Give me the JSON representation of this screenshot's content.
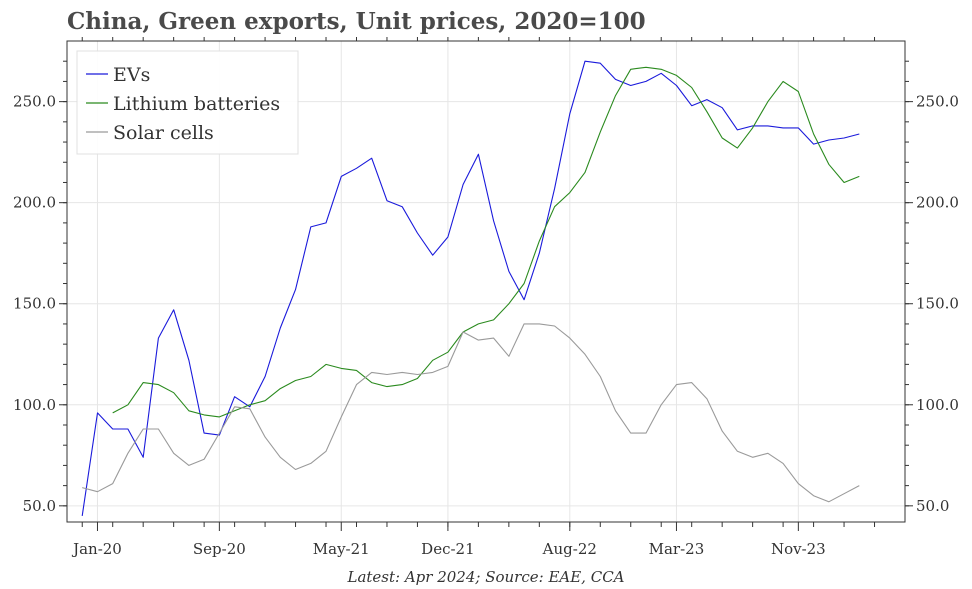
{
  "title": "China, Green exports, Unit prices, 2020=100",
  "source": "Latest: Apr 2024; Source: EAE, CCA",
  "colors": {
    "EVs": "#1a1adb",
    "Lithium batteries": "#2a8a1e",
    "Solar cells": "#9a9a9a",
    "grid": "#e6e6e6",
    "axis": "#333333"
  },
  "chart_data": {
    "type": "line",
    "title": "China, Green exports, Unit prices, 2020=100",
    "xlabel": "",
    "ylabel": "",
    "ylim": [
      42,
      280
    ],
    "grid": true,
    "legend": "top-left",
    "x_start": "Nov-19",
    "x": [
      "Dec-19",
      "Jan-20",
      "Feb-20",
      "Mar-20",
      "Apr-20",
      "May-20",
      "Jun-20",
      "Jul-20",
      "Aug-20",
      "Sep-20",
      "Oct-20",
      "Nov-20",
      "Dec-20",
      "Jan-21",
      "Feb-21",
      "Mar-21",
      "Apr-21",
      "May-21",
      "Jun-21",
      "Jul-21",
      "Aug-21",
      "Sep-21",
      "Oct-21",
      "Nov-21",
      "Dec-21",
      "Jan-22",
      "Feb-22",
      "Mar-22",
      "Apr-22",
      "May-22",
      "Jun-22",
      "Jul-22",
      "Aug-22",
      "Sep-22",
      "Oct-22",
      "Nov-22",
      "Dec-22",
      "Jan-23",
      "Feb-23",
      "Mar-23",
      "Apr-23",
      "May-23",
      "Jun-23",
      "Jul-23",
      "Aug-23",
      "Sep-23",
      "Oct-23",
      "Nov-23",
      "Dec-23",
      "Jan-24",
      "Feb-24",
      "Mar-24",
      "Apr-24"
    ],
    "x_tick_labels": [
      "Jan-20",
      "Sep-20",
      "May-21",
      "Dec-21",
      "Aug-22",
      "Mar-23",
      "Nov-23"
    ],
    "y_ticks": [
      "50.0",
      "100.0",
      "150.0",
      "200.0",
      "250.0"
    ],
    "series": [
      {
        "name": "EVs",
        "values": [
          45,
          96,
          88,
          88,
          74,
          133,
          147,
          122,
          86,
          85,
          104,
          99,
          114,
          138,
          157,
          188,
          190,
          213,
          217,
          222,
          201,
          198,
          185,
          174,
          183,
          209,
          224,
          191,
          166,
          152,
          175,
          207,
          244,
          270,
          269,
          261,
          258,
          260,
          264,
          258,
          248,
          251,
          247,
          236,
          238,
          238,
          237,
          237,
          229,
          231,
          232,
          234,
          null
        ]
      },
      {
        "name": "Lithium batteries",
        "values": [
          null,
          null,
          96,
          100,
          111,
          110,
          106,
          97,
          95,
          94,
          97,
          100,
          102,
          108,
          112,
          114,
          120,
          118,
          117,
          111,
          109,
          110,
          113,
          122,
          126,
          136,
          140,
          142,
          150,
          160,
          181,
          198,
          205,
          215,
          235,
          253,
          266,
          267,
          266,
          263,
          257,
          245,
          232,
          227,
          237,
          250,
          260,
          255,
          234,
          219,
          210,
          213,
          null
        ]
      },
      {
        "name": "Solar cells",
        "values": [
          59,
          57,
          61,
          76,
          88,
          88,
          76,
          70,
          73,
          86,
          99,
          98,
          84,
          74,
          68,
          71,
          77,
          94,
          110,
          116,
          115,
          116,
          115,
          116,
          119,
          136,
          132,
          133,
          124,
          140,
          140,
          139,
          133,
          125,
          114,
          97,
          86,
          86,
          100,
          110,
          111,
          103,
          87,
          77,
          74,
          76,
          71,
          61,
          55,
          52,
          56,
          60,
          null
        ]
      }
    ]
  }
}
